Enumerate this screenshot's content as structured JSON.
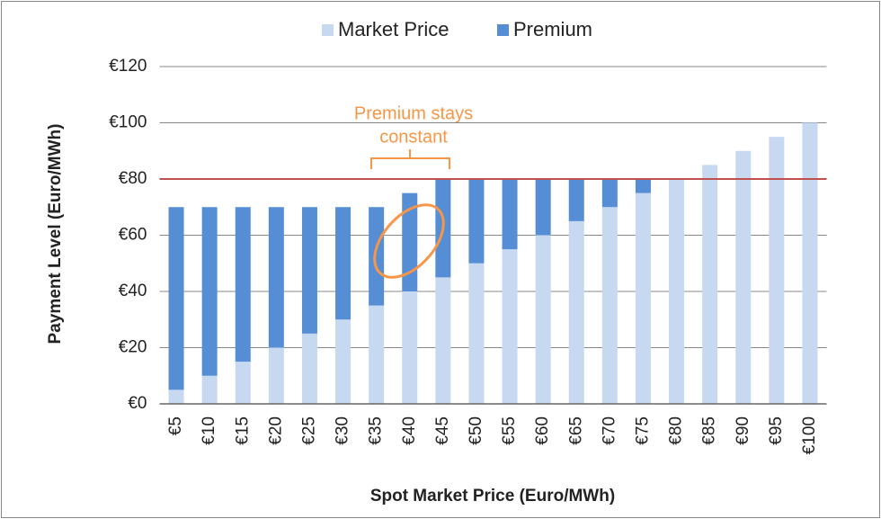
{
  "chart_data": {
    "type": "stacked_bar",
    "categories": [
      "€5",
      "€10",
      "€15",
      "€20",
      "€25",
      "€30",
      "€35",
      "€40",
      "€45",
      "€50",
      "€55",
      "€60",
      "€65",
      "€70",
      "€75",
      "€80",
      "€85",
      "€90",
      "€95",
      "€100"
    ],
    "series": [
      {
        "name": "Market Price",
        "color": "#c6d9f1",
        "values": [
          5,
          10,
          15,
          20,
          25,
          30,
          35,
          40,
          45,
          50,
          55,
          60,
          65,
          70,
          75,
          80,
          85,
          90,
          95,
          100
        ]
      },
      {
        "name": "Premium",
        "color": "#558ed5",
        "values": [
          65,
          60,
          55,
          50,
          45,
          40,
          35,
          35,
          35,
          30,
          25,
          20,
          15,
          10,
          5,
          0,
          0,
          0,
          0,
          0
        ]
      }
    ],
    "ylim": [
      0,
      120
    ],
    "yticks": [
      {
        "value": 0,
        "label": "€0"
      },
      {
        "value": 20,
        "label": "€20"
      },
      {
        "value": 40,
        "label": "€40"
      },
      {
        "value": 60,
        "label": "€60"
      },
      {
        "value": 80,
        "label": "€80"
      },
      {
        "value": 100,
        "label": "€100"
      },
      {
        "value": 120,
        "label": "€120"
      }
    ],
    "x_label": "Spot Market Price (Euro/MWh)",
    "y_label": "Payment Level (Euro/MWh)",
    "grid": true,
    "legend": "top",
    "reference_line": {
      "value": 80,
      "color": "#c0504d"
    },
    "annotation": {
      "lines": [
        "Premium stays",
        "constant"
      ]
    }
  }
}
